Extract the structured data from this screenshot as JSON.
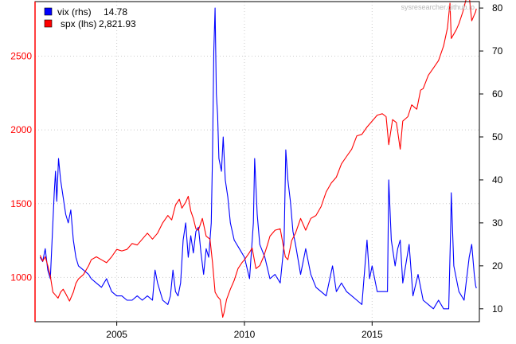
{
  "chart_data": {
    "type": "line",
    "x_range": [
      2001.8,
      2019.2
    ],
    "x_ticks": [
      2005,
      2010,
      2015
    ],
    "y_left": {
      "range": [
        700,
        2870
      ],
      "ticks": [
        1000,
        1500,
        2000,
        2500
      ],
      "color": "#ff0000"
    },
    "y_right": {
      "range": [
        7,
        81.5
      ],
      "ticks": [
        10,
        20,
        30,
        40,
        50,
        60,
        70,
        80
      ],
      "color": "#000000"
    },
    "grid": true,
    "legend_position": "top-left",
    "watermark": "sysresearcher.github.io",
    "series": [
      {
        "name": "vix (rhs)",
        "last_value": "14.78",
        "axis": "right",
        "color": "#0000ff",
        "points": [
          [
            2002.0,
            22
          ],
          [
            2002.1,
            21
          ],
          [
            2002.2,
            24
          ],
          [
            2002.3,
            19
          ],
          [
            2002.4,
            17
          ],
          [
            2002.5,
            30
          ],
          [
            2002.55,
            37
          ],
          [
            2002.6,
            42
          ],
          [
            2002.65,
            35
          ],
          [
            2002.72,
            45
          ],
          [
            2002.8,
            40
          ],
          [
            2002.9,
            36
          ],
          [
            2003.0,
            32
          ],
          [
            2003.1,
            30
          ],
          [
            2003.2,
            33
          ],
          [
            2003.3,
            26
          ],
          [
            2003.4,
            22
          ],
          [
            2003.5,
            20
          ],
          [
            2003.7,
            19
          ],
          [
            2003.9,
            18
          ],
          [
            2004.0,
            17
          ],
          [
            2004.2,
            16
          ],
          [
            2004.4,
            15
          ],
          [
            2004.6,
            17
          ],
          [
            2004.8,
            14
          ],
          [
            2005.0,
            13
          ],
          [
            2005.2,
            13
          ],
          [
            2005.4,
            12
          ],
          [
            2005.6,
            12
          ],
          [
            2005.8,
            13
          ],
          [
            2006.0,
            12
          ],
          [
            2006.2,
            13
          ],
          [
            2006.4,
            12
          ],
          [
            2006.5,
            19
          ],
          [
            2006.6,
            16
          ],
          [
            2006.8,
            12
          ],
          [
            2007.0,
            11
          ],
          [
            2007.1,
            13
          ],
          [
            2007.2,
            19
          ],
          [
            2007.3,
            14
          ],
          [
            2007.4,
            13
          ],
          [
            2007.5,
            16
          ],
          [
            2007.6,
            26
          ],
          [
            2007.7,
            30
          ],
          [
            2007.8,
            22
          ],
          [
            2007.9,
            27
          ],
          [
            2008.0,
            23
          ],
          [
            2008.1,
            28
          ],
          [
            2008.2,
            29
          ],
          [
            2008.3,
            23
          ],
          [
            2008.4,
            18
          ],
          [
            2008.5,
            24
          ],
          [
            2008.6,
            22
          ],
          [
            2008.7,
            30
          ],
          [
            2008.75,
            46
          ],
          [
            2008.8,
            70
          ],
          [
            2008.85,
            80
          ],
          [
            2008.9,
            60
          ],
          [
            2008.95,
            55
          ],
          [
            2009.0,
            45
          ],
          [
            2009.1,
            42
          ],
          [
            2009.17,
            50
          ],
          [
            2009.25,
            40
          ],
          [
            2009.35,
            36
          ],
          [
            2009.45,
            30
          ],
          [
            2009.6,
            26
          ],
          [
            2009.8,
            24
          ],
          [
            2010.0,
            22
          ],
          [
            2010.2,
            17
          ],
          [
            2010.35,
            30
          ],
          [
            2010.4,
            45
          ],
          [
            2010.5,
            32
          ],
          [
            2010.6,
            25
          ],
          [
            2010.8,
            22
          ],
          [
            2011.0,
            17
          ],
          [
            2011.2,
            18
          ],
          [
            2011.4,
            16
          ],
          [
            2011.55,
            25
          ],
          [
            2011.62,
            47
          ],
          [
            2011.7,
            40
          ],
          [
            2011.8,
            35
          ],
          [
            2011.9,
            28
          ],
          [
            2012.0,
            25
          ],
          [
            2012.2,
            18
          ],
          [
            2012.4,
            24
          ],
          [
            2012.6,
            18
          ],
          [
            2012.8,
            15
          ],
          [
            2013.0,
            14
          ],
          [
            2013.2,
            13
          ],
          [
            2013.45,
            20
          ],
          [
            2013.6,
            14
          ],
          [
            2013.8,
            16
          ],
          [
            2014.0,
            14
          ],
          [
            2014.2,
            13
          ],
          [
            2014.4,
            12
          ],
          [
            2014.6,
            11
          ],
          [
            2014.8,
            26
          ],
          [
            2014.9,
            17
          ],
          [
            2015.0,
            20
          ],
          [
            2015.2,
            14
          ],
          [
            2015.4,
            14
          ],
          [
            2015.6,
            14
          ],
          [
            2015.65,
            40
          ],
          [
            2015.75,
            26
          ],
          [
            2015.9,
            20
          ],
          [
            2016.0,
            24
          ],
          [
            2016.1,
            26
          ],
          [
            2016.2,
            16
          ],
          [
            2016.45,
            25
          ],
          [
            2016.6,
            13
          ],
          [
            2016.8,
            18
          ],
          [
            2017.0,
            12
          ],
          [
            2017.2,
            11
          ],
          [
            2017.4,
            10
          ],
          [
            2017.6,
            12
          ],
          [
            2017.8,
            10
          ],
          [
            2018.0,
            10
          ],
          [
            2018.08,
            30
          ],
          [
            2018.1,
            37
          ],
          [
            2018.2,
            20
          ],
          [
            2018.4,
            14
          ],
          [
            2018.6,
            12
          ],
          [
            2018.8,
            22
          ],
          [
            2018.9,
            25
          ],
          [
            2019.0,
            18
          ],
          [
            2019.05,
            15.5
          ],
          [
            2019.08,
            14.78
          ]
        ]
      },
      {
        "name": "spx (lhs)",
        "last_value": "2,821.93",
        "axis": "left",
        "color": "#ff0000",
        "points": [
          [
            2002.0,
            1150
          ],
          [
            2002.1,
            1110
          ],
          [
            2002.2,
            1140
          ],
          [
            2002.3,
            1080
          ],
          [
            2002.4,
            1010
          ],
          [
            2002.5,
            900
          ],
          [
            2002.6,
            880
          ],
          [
            2002.7,
            860
          ],
          [
            2002.8,
            900
          ],
          [
            2002.9,
            920
          ],
          [
            2003.0,
            890
          ],
          [
            2003.15,
            840
          ],
          [
            2003.3,
            900
          ],
          [
            2003.4,
            960
          ],
          [
            2003.5,
            990
          ],
          [
            2003.7,
            1020
          ],
          [
            2003.9,
            1080
          ],
          [
            2004.0,
            1120
          ],
          [
            2004.2,
            1140
          ],
          [
            2004.4,
            1120
          ],
          [
            2004.6,
            1100
          ],
          [
            2004.8,
            1140
          ],
          [
            2005.0,
            1190
          ],
          [
            2005.2,
            1180
          ],
          [
            2005.4,
            1190
          ],
          [
            2005.6,
            1230
          ],
          [
            2005.8,
            1220
          ],
          [
            2006.0,
            1260
          ],
          [
            2006.2,
            1300
          ],
          [
            2006.4,
            1260
          ],
          [
            2006.6,
            1300
          ],
          [
            2006.8,
            1370
          ],
          [
            2007.0,
            1420
          ],
          [
            2007.15,
            1390
          ],
          [
            2007.3,
            1490
          ],
          [
            2007.45,
            1530
          ],
          [
            2007.55,
            1470
          ],
          [
            2007.7,
            1510
          ],
          [
            2007.8,
            1550
          ],
          [
            2007.9,
            1450
          ],
          [
            2008.0,
            1400
          ],
          [
            2008.1,
            1330
          ],
          [
            2008.2,
            1320
          ],
          [
            2008.35,
            1400
          ],
          [
            2008.5,
            1280
          ],
          [
            2008.65,
            1260
          ],
          [
            2008.75,
            1100
          ],
          [
            2008.85,
            900
          ],
          [
            2008.95,
            870
          ],
          [
            2009.05,
            850
          ],
          [
            2009.15,
            730
          ],
          [
            2009.2,
            760
          ],
          [
            2009.3,
            850
          ],
          [
            2009.45,
            920
          ],
          [
            2009.6,
            980
          ],
          [
            2009.75,
            1060
          ],
          [
            2009.9,
            1100
          ],
          [
            2010.0,
            1120
          ],
          [
            2010.2,
            1170
          ],
          [
            2010.3,
            1200
          ],
          [
            2010.45,
            1060
          ],
          [
            2010.6,
            1080
          ],
          [
            2010.75,
            1140
          ],
          [
            2010.9,
            1220
          ],
          [
            2011.0,
            1280
          ],
          [
            2011.2,
            1320
          ],
          [
            2011.4,
            1330
          ],
          [
            2011.6,
            1140
          ],
          [
            2011.7,
            1120
          ],
          [
            2011.85,
            1250
          ],
          [
            2012.0,
            1300
          ],
          [
            2012.2,
            1400
          ],
          [
            2012.4,
            1320
          ],
          [
            2012.6,
            1400
          ],
          [
            2012.8,
            1420
          ],
          [
            2013.0,
            1480
          ],
          [
            2013.2,
            1580
          ],
          [
            2013.4,
            1640
          ],
          [
            2013.6,
            1680
          ],
          [
            2013.8,
            1770
          ],
          [
            2014.0,
            1820
          ],
          [
            2014.2,
            1870
          ],
          [
            2014.4,
            1960
          ],
          [
            2014.6,
            1970
          ],
          [
            2014.8,
            2020
          ],
          [
            2015.0,
            2060
          ],
          [
            2015.2,
            2100
          ],
          [
            2015.4,
            2110
          ],
          [
            2015.55,
            2090
          ],
          [
            2015.65,
            1900
          ],
          [
            2015.8,
            2070
          ],
          [
            2015.95,
            2050
          ],
          [
            2016.1,
            1870
          ],
          [
            2016.2,
            2060
          ],
          [
            2016.4,
            2090
          ],
          [
            2016.55,
            2170
          ],
          [
            2016.75,
            2140
          ],
          [
            2016.9,
            2270
          ],
          [
            2017.0,
            2280
          ],
          [
            2017.2,
            2370
          ],
          [
            2017.4,
            2420
          ],
          [
            2017.6,
            2470
          ],
          [
            2017.8,
            2570
          ],
          [
            2017.95,
            2690
          ],
          [
            2018.05,
            2860
          ],
          [
            2018.1,
            2620
          ],
          [
            2018.2,
            2650
          ],
          [
            2018.3,
            2680
          ],
          [
            2018.4,
            2720
          ],
          [
            2018.55,
            2800
          ],
          [
            2018.7,
            2900
          ],
          [
            2018.8,
            2910
          ],
          [
            2018.9,
            2740
          ],
          [
            2019.0,
            2780
          ],
          [
            2019.05,
            2800
          ],
          [
            2019.08,
            2821.93
          ]
        ]
      }
    ]
  }
}
